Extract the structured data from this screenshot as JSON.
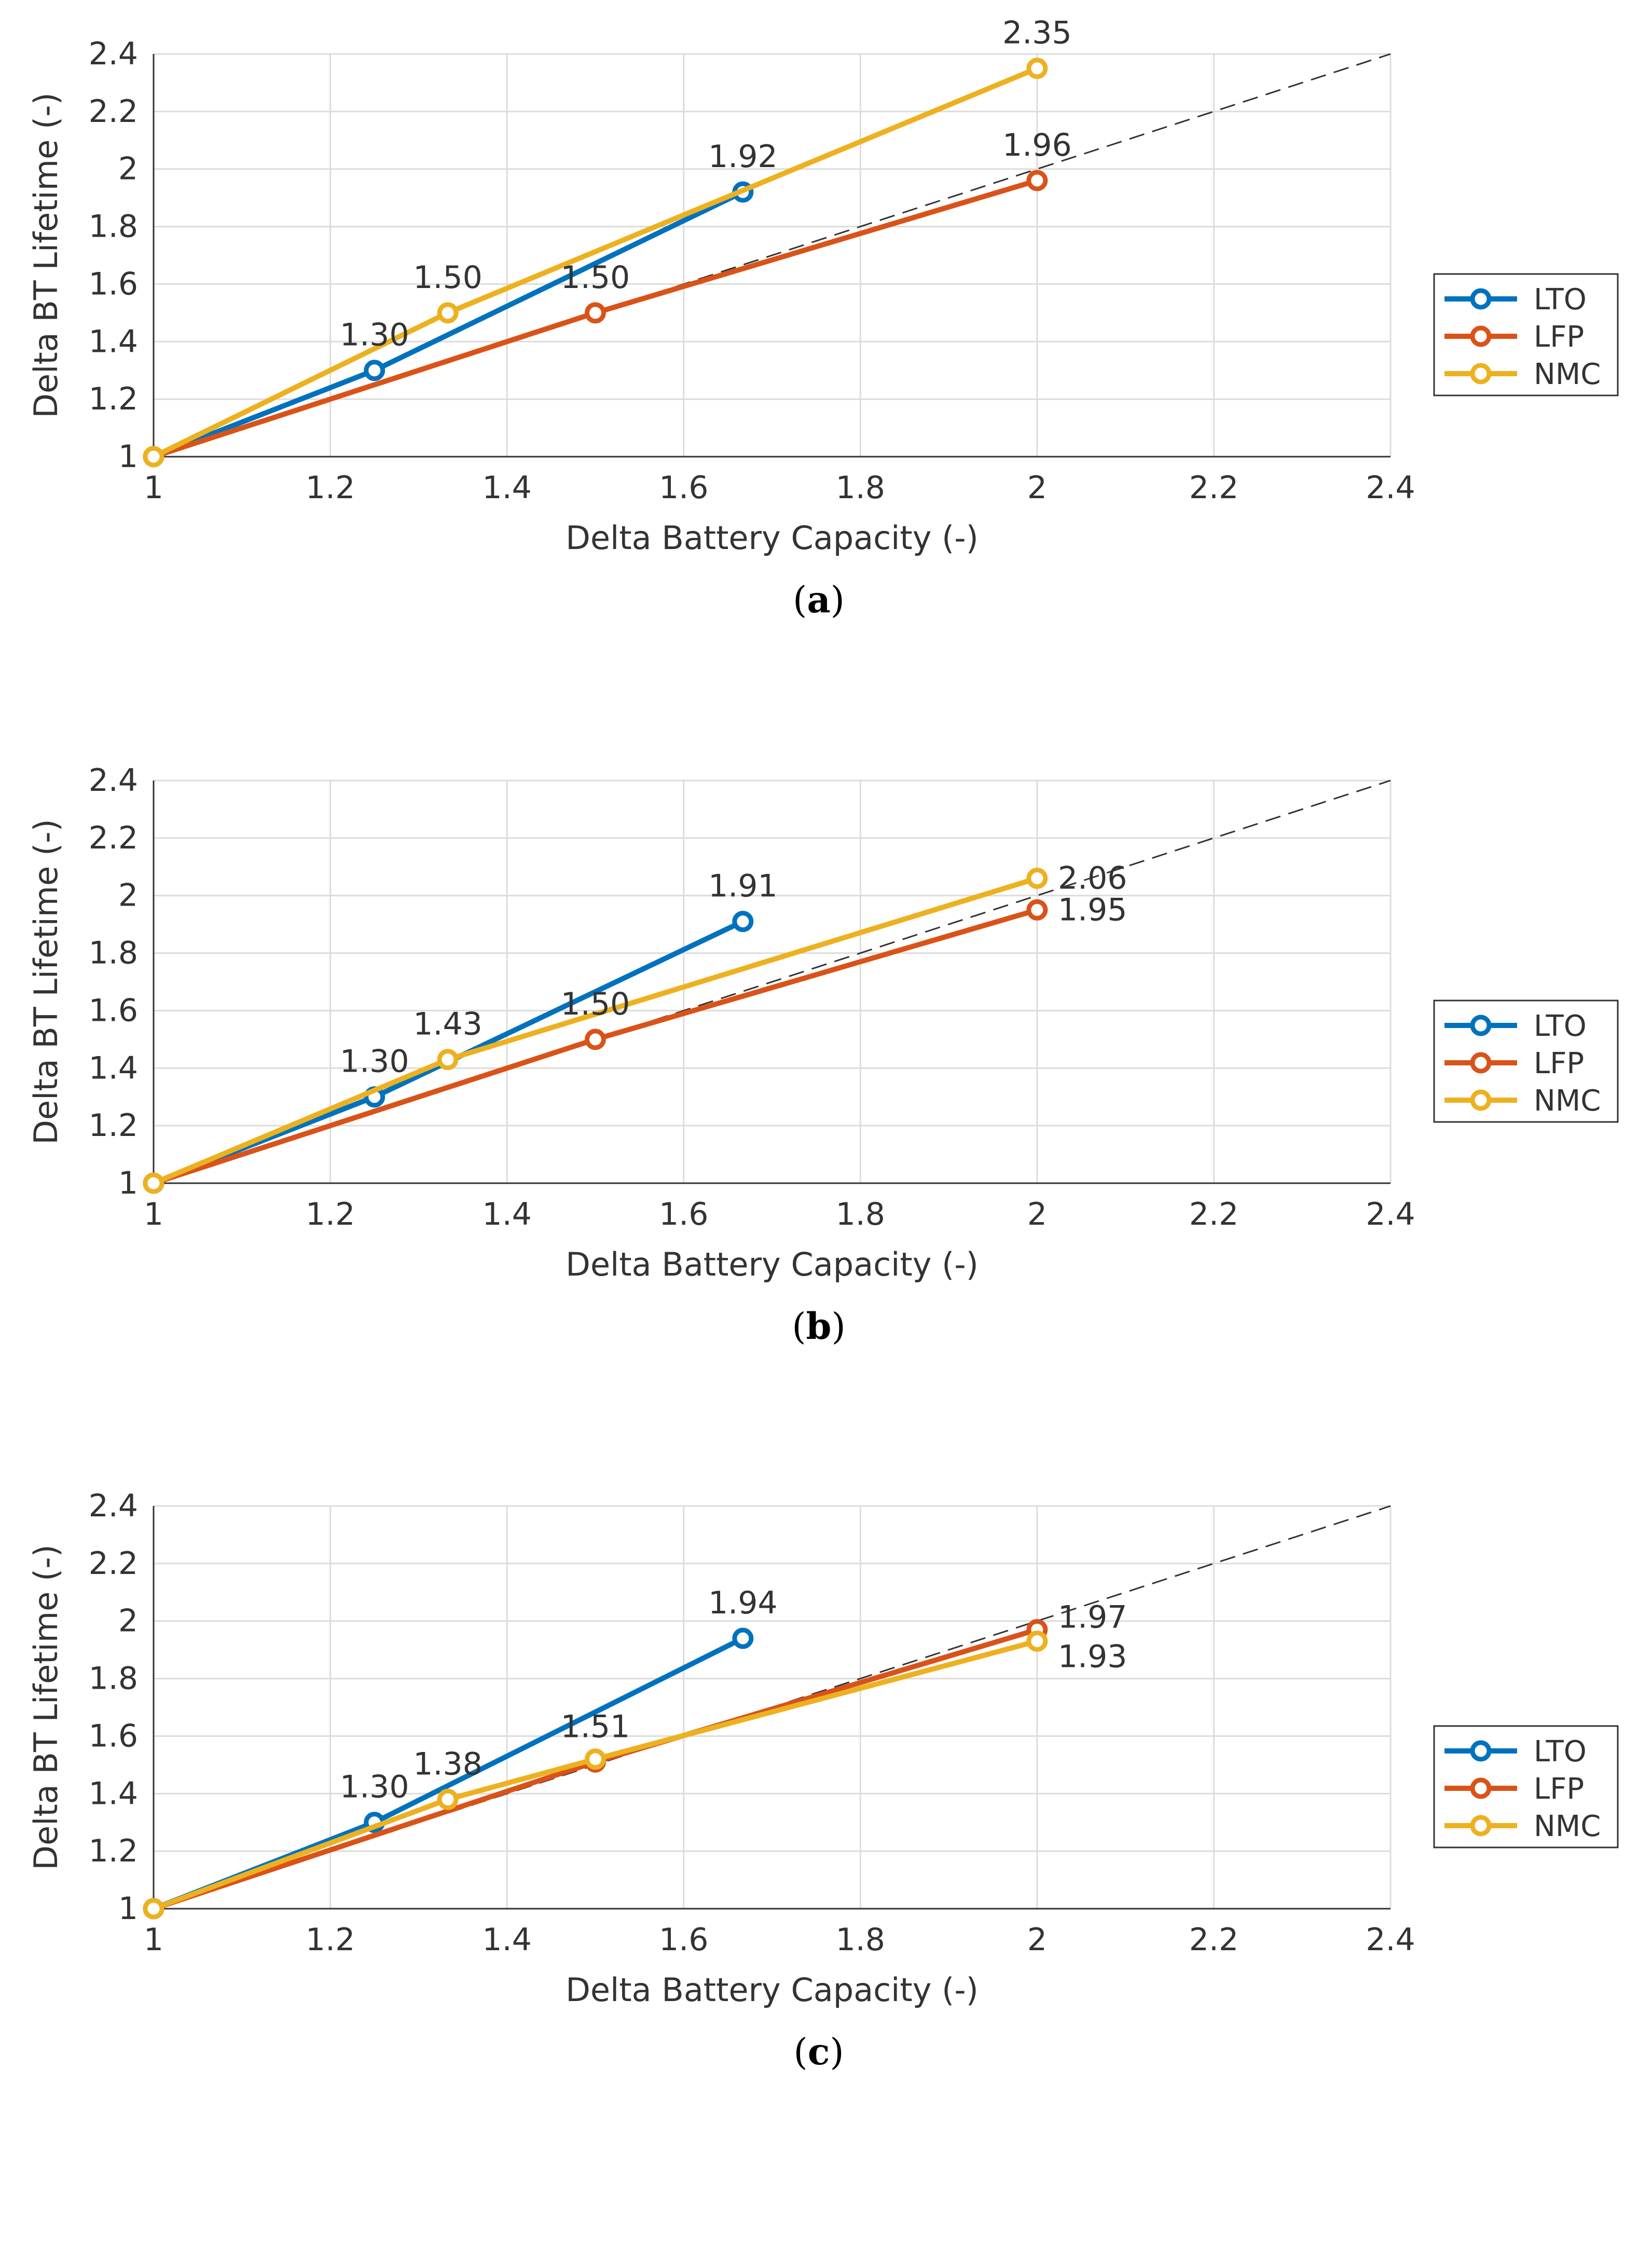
{
  "chart_data": [
    {
      "type": "line",
      "panel_label": "a",
      "xlabel": "Delta Battery Capacity (-)",
      "ylabel": "Delta BT Lifetime (-)",
      "xlim": [
        1,
        2.4
      ],
      "ylim": [
        1,
        2.4
      ],
      "xticks": [
        1,
        1.2,
        1.4,
        1.6,
        1.8,
        2,
        2.2,
        2.4
      ],
      "yticks": [
        1,
        1.2,
        1.4,
        1.6,
        1.8,
        2,
        2.2,
        2.4
      ],
      "xtick_labels": [
        "1",
        "1.2",
        "1.4",
        "1.6",
        "1.8",
        "2",
        "2.2",
        "2.4"
      ],
      "ytick_labels": [
        "1",
        "1.2",
        "1.4",
        "1.6",
        "1.8",
        "2",
        "2.2",
        "2.4"
      ],
      "grid": true,
      "legend_position": "right",
      "reference_line": {
        "style": "dashed",
        "color": "#333333",
        "x": [
          1,
          2.4
        ],
        "y": [
          1,
          2.4
        ]
      },
      "series": [
        {
          "name": "LTO",
          "color": "#0072BD",
          "x": [
            1,
            1.25,
            1.667
          ],
          "y": [
            1,
            1.3,
            1.92
          ]
        },
        {
          "name": "LFP",
          "color": "#D95319",
          "x": [
            1,
            1.5,
            2
          ],
          "y": [
            1,
            1.5,
            1.96
          ]
        },
        {
          "name": "NMC",
          "color": "#EDB120",
          "x": [
            1,
            1.333,
            2
          ],
          "y": [
            1,
            1.5,
            2.35
          ]
        }
      ],
      "annotations": [
        {
          "text": "1.30",
          "x": 1.25,
          "y": 1.3,
          "pos": "above"
        },
        {
          "text": "1.50",
          "x": 1.333,
          "y": 1.5,
          "pos": "above"
        },
        {
          "text": "1.50",
          "x": 1.5,
          "y": 1.5,
          "pos": "above"
        },
        {
          "text": "1.92",
          "x": 1.667,
          "y": 1.92,
          "pos": "above"
        },
        {
          "text": "1.96",
          "x": 2,
          "y": 1.96,
          "pos": "above"
        },
        {
          "text": "2.35",
          "x": 2,
          "y": 2.35,
          "pos": "above"
        }
      ]
    },
    {
      "type": "line",
      "panel_label": "b",
      "xlabel": "Delta Battery Capacity (-)",
      "ylabel": "Delta BT Lifetime (-)",
      "xlim": [
        1,
        2.4
      ],
      "ylim": [
        1,
        2.4
      ],
      "xticks": [
        1,
        1.2,
        1.4,
        1.6,
        1.8,
        2,
        2.2,
        2.4
      ],
      "yticks": [
        1,
        1.2,
        1.4,
        1.6,
        1.8,
        2,
        2.2,
        2.4
      ],
      "xtick_labels": [
        "1",
        "1.2",
        "1.4",
        "1.6",
        "1.8",
        "2",
        "2.2",
        "2.4"
      ],
      "ytick_labels": [
        "1",
        "1.2",
        "1.4",
        "1.6",
        "1.8",
        "2",
        "2.2",
        "2.4"
      ],
      "grid": true,
      "legend_position": "right",
      "reference_line": {
        "style": "dashed",
        "color": "#333333",
        "x": [
          1,
          2.4
        ],
        "y": [
          1,
          2.4
        ]
      },
      "series": [
        {
          "name": "LTO",
          "color": "#0072BD",
          "x": [
            1,
            1.25,
            1.667
          ],
          "y": [
            1,
            1.3,
            1.91
          ]
        },
        {
          "name": "LFP",
          "color": "#D95319",
          "x": [
            1,
            1.5,
            2
          ],
          "y": [
            1,
            1.5,
            1.95
          ]
        },
        {
          "name": "NMC",
          "color": "#EDB120",
          "x": [
            1,
            1.333,
            2
          ],
          "y": [
            1,
            1.43,
            2.06
          ]
        }
      ],
      "annotations": [
        {
          "text": "1.30",
          "x": 1.25,
          "y": 1.3,
          "pos": "above"
        },
        {
          "text": "1.43",
          "x": 1.333,
          "y": 1.43,
          "pos": "above"
        },
        {
          "text": "1.50",
          "x": 1.5,
          "y": 1.5,
          "pos": "above"
        },
        {
          "text": "1.91",
          "x": 1.667,
          "y": 1.91,
          "pos": "above"
        },
        {
          "text": "2.06",
          "x": 2,
          "y": 2.06,
          "pos": "right"
        },
        {
          "text": "1.95",
          "x": 2,
          "y": 1.95,
          "pos": "right"
        }
      ]
    },
    {
      "type": "line",
      "panel_label": "c",
      "xlabel": "Delta Battery Capacity (-)",
      "ylabel": "Delta BT Lifetime (-)",
      "xlim": [
        1,
        2.4
      ],
      "ylim": [
        1,
        2.4
      ],
      "xticks": [
        1,
        1.2,
        1.4,
        1.6,
        1.8,
        2,
        2.2,
        2.4
      ],
      "yticks": [
        1,
        1.2,
        1.4,
        1.6,
        1.8,
        2,
        2.2,
        2.4
      ],
      "xtick_labels": [
        "1",
        "1.2",
        "1.4",
        "1.6",
        "1.8",
        "2",
        "2.2",
        "2.4"
      ],
      "ytick_labels": [
        "1",
        "1.2",
        "1.4",
        "1.6",
        "1.8",
        "2",
        "2.2",
        "2.4"
      ],
      "grid": true,
      "legend_position": "right",
      "reference_line": {
        "style": "dashed",
        "color": "#333333",
        "x": [
          1,
          2.4
        ],
        "y": [
          1,
          2.4
        ]
      },
      "series": [
        {
          "name": "LTO",
          "color": "#0072BD",
          "x": [
            1,
            1.25,
            1.667
          ],
          "y": [
            1,
            1.3,
            1.94
          ]
        },
        {
          "name": "LFP",
          "color": "#D95319",
          "x": [
            1,
            1.5,
            2
          ],
          "y": [
            1,
            1.51,
            1.97
          ]
        },
        {
          "name": "NMC",
          "color": "#EDB120",
          "x": [
            1,
            1.333,
            1.5,
            2
          ],
          "y": [
            1,
            1.38,
            1.52,
            1.93
          ]
        }
      ],
      "annotations": [
        {
          "text": "1.30",
          "x": 1.25,
          "y": 1.3,
          "pos": "above"
        },
        {
          "text": "1.38",
          "x": 1.333,
          "y": 1.38,
          "pos": "above"
        },
        {
          "text": "1.51",
          "x": 1.5,
          "y": 1.51,
          "pos": "above"
        },
        {
          "text": "1.94",
          "x": 1.667,
          "y": 1.94,
          "pos": "above"
        },
        {
          "text": "1.97",
          "x": 2,
          "y": 1.97,
          "pos": "right-up"
        },
        {
          "text": "1.93",
          "x": 2,
          "y": 1.93,
          "pos": "right-down"
        }
      ]
    }
  ]
}
